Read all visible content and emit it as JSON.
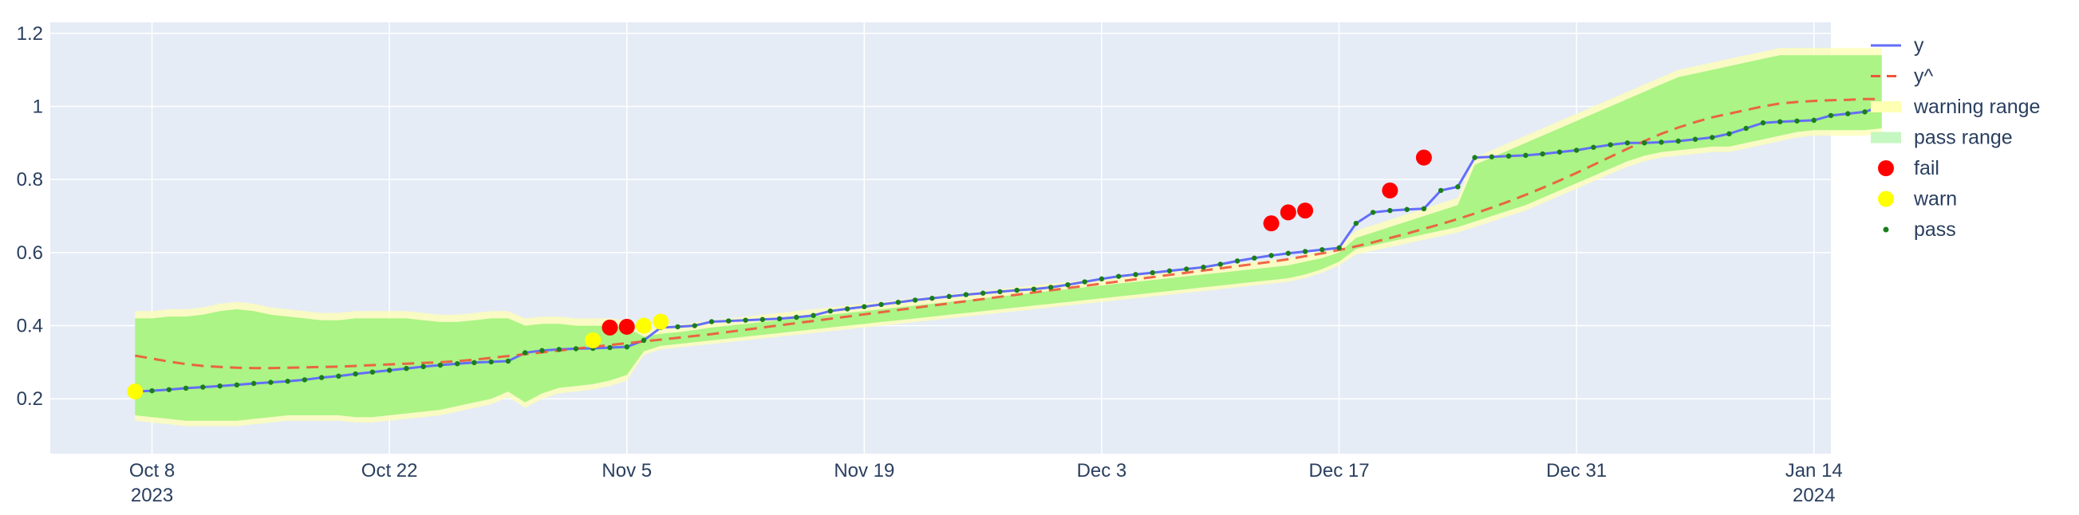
{
  "chart_data": {
    "type": "line",
    "x_type": "date",
    "xlim": [
      "2023-10-02",
      "2024-01-15"
    ],
    "ylim": [
      0.05,
      1.23
    ],
    "x_ticks": [
      {
        "date": "2023-10-08",
        "label": "Oct 8",
        "sublabel": "2023"
      },
      {
        "date": "2023-10-22",
        "label": "Oct 22",
        "sublabel": ""
      },
      {
        "date": "2023-11-05",
        "label": "Nov 5",
        "sublabel": ""
      },
      {
        "date": "2023-11-19",
        "label": "Nov 19",
        "sublabel": ""
      },
      {
        "date": "2023-12-03",
        "label": "Dec 3",
        "sublabel": ""
      },
      {
        "date": "2023-12-17",
        "label": "Dec 17",
        "sublabel": ""
      },
      {
        "date": "2023-12-31",
        "label": "Dec 31",
        "sublabel": ""
      },
      {
        "date": "2024-01-14",
        "label": "Jan 14",
        "sublabel": "2024"
      }
    ],
    "y_ticks": [
      {
        "value": 0.2,
        "label": "0.2"
      },
      {
        "value": 0.4,
        "label": "0.4"
      },
      {
        "value": 0.6,
        "label": "0.6"
      },
      {
        "value": 0.8,
        "label": "0.8"
      },
      {
        "value": 1.0,
        "label": "1"
      },
      {
        "value": 1.2,
        "label": "1.2"
      }
    ],
    "grid": true,
    "legend_position": "right",
    "legend": [
      {
        "key": "y",
        "label": "y",
        "symbol": "line",
        "color": "#636efa"
      },
      {
        "key": "yhat",
        "label": "y^",
        "symbol": "dash",
        "color": "#ef553b"
      },
      {
        "key": "warning",
        "label": "warning range",
        "symbol": "band",
        "color": "#ffffb3"
      },
      {
        "key": "pass_range",
        "label": "pass range",
        "symbol": "band",
        "color": "#c5f7c0"
      },
      {
        "key": "fail",
        "label": "fail",
        "symbol": "dot-large",
        "color": "#ff0000"
      },
      {
        "key": "warn",
        "label": "warn",
        "symbol": "dot-large",
        "color": "#ffff00"
      },
      {
        "key": "pass",
        "label": "pass",
        "symbol": "dot-small",
        "color": "#1a7f1a"
      }
    ],
    "colors": {
      "plot_bg": "#e5ecf6",
      "grid": "#ffffff",
      "y_line": "#636efa",
      "yhat_line": "#ef553b",
      "warning_band": "#ffffb3",
      "pass_band": "#9ef27a",
      "fail": "#ff0000",
      "warn": "#ffff00",
      "pass": "#1a7f1a"
    },
    "start_date": "2023-10-07",
    "y": [
      0.22,
      0.222,
      0.225,
      0.229,
      0.232,
      0.235,
      0.238,
      0.242,
      0.245,
      0.248,
      0.252,
      0.258,
      0.262,
      0.268,
      0.273,
      0.278,
      0.283,
      0.288,
      0.292,
      0.296,
      0.299,
      0.301,
      0.303,
      0.326,
      0.332,
      0.335,
      0.337,
      0.338,
      0.34,
      0.342,
      0.36,
      0.395,
      0.397,
      0.4,
      0.411,
      0.413,
      0.415,
      0.417,
      0.419,
      0.423,
      0.428,
      0.44,
      0.446,
      0.452,
      0.458,
      0.464,
      0.47,
      0.475,
      0.48,
      0.485,
      0.489,
      0.493,
      0.497,
      0.5,
      0.505,
      0.512,
      0.52,
      0.528,
      0.535,
      0.54,
      0.545,
      0.55,
      0.555,
      0.56,
      0.568,
      0.577,
      0.585,
      0.592,
      0.598,
      0.603,
      0.608,
      0.613,
      0.68,
      0.71,
      0.715,
      0.718,
      0.72,
      0.77,
      0.78,
      0.86,
      0.862,
      0.864,
      0.866,
      0.87,
      0.875,
      0.88,
      0.888,
      0.895,
      0.9,
      0.9,
      0.902,
      0.905,
      0.91,
      0.915,
      0.925,
      0.94,
      0.955,
      0.958,
      0.96,
      0.962,
      0.975,
      0.98,
      0.985,
      1.0
    ],
    "yhat": [
      0.318,
      0.31,
      0.302,
      0.295,
      0.29,
      0.287,
      0.285,
      0.284,
      0.284,
      0.285,
      0.286,
      0.287,
      0.288,
      0.29,
      0.292,
      0.294,
      0.296,
      0.298,
      0.3,
      0.303,
      0.307,
      0.312,
      0.317,
      0.322,
      0.327,
      0.332,
      0.337,
      0.342,
      0.347,
      0.352,
      0.357,
      0.362,
      0.367,
      0.372,
      0.377,
      0.383,
      0.389,
      0.395,
      0.401,
      0.407,
      0.413,
      0.419,
      0.425,
      0.431,
      0.437,
      0.443,
      0.449,
      0.455,
      0.461,
      0.467,
      0.473,
      0.479,
      0.485,
      0.491,
      0.497,
      0.503,
      0.509,
      0.515,
      0.521,
      0.527,
      0.533,
      0.539,
      0.545,
      0.551,
      0.557,
      0.563,
      0.569,
      0.575,
      0.582,
      0.59,
      0.598,
      0.607,
      0.617,
      0.628,
      0.64,
      0.652,
      0.665,
      0.678,
      0.692,
      0.707,
      0.723,
      0.74,
      0.758,
      0.777,
      0.797,
      0.818,
      0.84,
      0.862,
      0.884,
      0.905,
      0.925,
      0.942,
      0.957,
      0.97,
      0.98,
      0.99,
      1.0,
      1.008,
      1.012,
      1.015,
      1.017,
      1.018,
      1.02,
      1.02
    ],
    "pass_band": [
      [
        0.155,
        0.42
      ],
      [
        0.15,
        0.42
      ],
      [
        0.145,
        0.425
      ],
      [
        0.14,
        0.425
      ],
      [
        0.14,
        0.43
      ],
      [
        0.14,
        0.44
      ],
      [
        0.14,
        0.445
      ],
      [
        0.145,
        0.44
      ],
      [
        0.15,
        0.43
      ],
      [
        0.155,
        0.425
      ],
      [
        0.155,
        0.42
      ],
      [
        0.155,
        0.415
      ],
      [
        0.155,
        0.415
      ],
      [
        0.15,
        0.42
      ],
      [
        0.15,
        0.42
      ],
      [
        0.155,
        0.42
      ],
      [
        0.16,
        0.42
      ],
      [
        0.165,
        0.415
      ],
      [
        0.17,
        0.41
      ],
      [
        0.18,
        0.41
      ],
      [
        0.19,
        0.415
      ],
      [
        0.2,
        0.42
      ],
      [
        0.22,
        0.42
      ],
      [
        0.19,
        0.4
      ],
      [
        0.215,
        0.405
      ],
      [
        0.23,
        0.405
      ],
      [
        0.235,
        0.4
      ],
      [
        0.24,
        0.4
      ],
      [
        0.25,
        0.4
      ],
      [
        0.265,
        0.395
      ],
      [
        0.33,
        0.37
      ],
      [
        0.345,
        0.378
      ],
      [
        0.35,
        0.382
      ],
      [
        0.355,
        0.388
      ],
      [
        0.36,
        0.395
      ],
      [
        0.365,
        0.4
      ],
      [
        0.37,
        0.405
      ],
      [
        0.375,
        0.41
      ],
      [
        0.38,
        0.415
      ],
      [
        0.385,
        0.42
      ],
      [
        0.39,
        0.425
      ],
      [
        0.395,
        0.43
      ],
      [
        0.4,
        0.435
      ],
      [
        0.405,
        0.44
      ],
      [
        0.41,
        0.445
      ],
      [
        0.415,
        0.45
      ],
      [
        0.42,
        0.455
      ],
      [
        0.425,
        0.46
      ],
      [
        0.43,
        0.465
      ],
      [
        0.435,
        0.47
      ],
      [
        0.44,
        0.475
      ],
      [
        0.445,
        0.48
      ],
      [
        0.45,
        0.485
      ],
      [
        0.455,
        0.49
      ],
      [
        0.46,
        0.495
      ],
      [
        0.465,
        0.5
      ],
      [
        0.47,
        0.505
      ],
      [
        0.475,
        0.51
      ],
      [
        0.48,
        0.515
      ],
      [
        0.485,
        0.52
      ],
      [
        0.49,
        0.525
      ],
      [
        0.495,
        0.53
      ],
      [
        0.5,
        0.535
      ],
      [
        0.505,
        0.54
      ],
      [
        0.51,
        0.545
      ],
      [
        0.515,
        0.55
      ],
      [
        0.52,
        0.555
      ],
      [
        0.525,
        0.56
      ],
      [
        0.53,
        0.565
      ],
      [
        0.54,
        0.575
      ],
      [
        0.555,
        0.585
      ],
      [
        0.575,
        0.6
      ],
      [
        0.61,
        0.64
      ],
      [
        0.62,
        0.655
      ],
      [
        0.63,
        0.67
      ],
      [
        0.64,
        0.685
      ],
      [
        0.65,
        0.7
      ],
      [
        0.66,
        0.715
      ],
      [
        0.67,
        0.73
      ],
      [
        0.685,
        0.84
      ],
      [
        0.7,
        0.86
      ],
      [
        0.715,
        0.88
      ],
      [
        0.73,
        0.9
      ],
      [
        0.75,
        0.92
      ],
      [
        0.77,
        0.94
      ],
      [
        0.79,
        0.96
      ],
      [
        0.81,
        0.98
      ],
      [
        0.83,
        1.0
      ],
      [
        0.85,
        1.02
      ],
      [
        0.865,
        1.04
      ],
      [
        0.875,
        1.06
      ],
      [
        0.88,
        1.08
      ],
      [
        0.885,
        1.09
      ],
      [
        0.89,
        1.1
      ],
      [
        0.89,
        1.11
      ],
      [
        0.9,
        1.12
      ],
      [
        0.91,
        1.13
      ],
      [
        0.92,
        1.14
      ],
      [
        0.93,
        1.14
      ],
      [
        0.935,
        1.14
      ],
      [
        0.935,
        1.14
      ],
      [
        0.935,
        1.14
      ],
      [
        0.935,
        1.14
      ],
      [
        0.94,
        1.14
      ]
    ],
    "warning_band": [
      [
        0.14,
        0.44
      ],
      [
        0.135,
        0.44
      ],
      [
        0.13,
        0.445
      ],
      [
        0.125,
        0.445
      ],
      [
        0.125,
        0.45
      ],
      [
        0.125,
        0.46
      ],
      [
        0.125,
        0.465
      ],
      [
        0.13,
        0.46
      ],
      [
        0.135,
        0.45
      ],
      [
        0.14,
        0.445
      ],
      [
        0.14,
        0.44
      ],
      [
        0.14,
        0.435
      ],
      [
        0.14,
        0.435
      ],
      [
        0.135,
        0.44
      ],
      [
        0.135,
        0.44
      ],
      [
        0.14,
        0.44
      ],
      [
        0.145,
        0.44
      ],
      [
        0.15,
        0.435
      ],
      [
        0.155,
        0.43
      ],
      [
        0.165,
        0.43
      ],
      [
        0.175,
        0.435
      ],
      [
        0.185,
        0.44
      ],
      [
        0.205,
        0.44
      ],
      [
        0.175,
        0.42
      ],
      [
        0.2,
        0.425
      ],
      [
        0.215,
        0.425
      ],
      [
        0.22,
        0.42
      ],
      [
        0.225,
        0.42
      ],
      [
        0.235,
        0.42
      ],
      [
        0.25,
        0.415
      ],
      [
        0.32,
        0.39
      ],
      [
        0.335,
        0.398
      ],
      [
        0.34,
        0.402
      ],
      [
        0.345,
        0.408
      ],
      [
        0.35,
        0.415
      ],
      [
        0.355,
        0.42
      ],
      [
        0.36,
        0.425
      ],
      [
        0.365,
        0.43
      ],
      [
        0.37,
        0.435
      ],
      [
        0.375,
        0.44
      ],
      [
        0.38,
        0.445
      ],
      [
        0.385,
        0.45
      ],
      [
        0.39,
        0.455
      ],
      [
        0.395,
        0.46
      ],
      [
        0.4,
        0.465
      ],
      [
        0.405,
        0.47
      ],
      [
        0.41,
        0.475
      ],
      [
        0.415,
        0.48
      ],
      [
        0.42,
        0.485
      ],
      [
        0.425,
        0.49
      ],
      [
        0.43,
        0.495
      ],
      [
        0.435,
        0.5
      ],
      [
        0.44,
        0.505
      ],
      [
        0.445,
        0.51
      ],
      [
        0.45,
        0.515
      ],
      [
        0.455,
        0.52
      ],
      [
        0.46,
        0.525
      ],
      [
        0.465,
        0.53
      ],
      [
        0.47,
        0.535
      ],
      [
        0.475,
        0.54
      ],
      [
        0.48,
        0.545
      ],
      [
        0.485,
        0.55
      ],
      [
        0.49,
        0.555
      ],
      [
        0.495,
        0.56
      ],
      [
        0.5,
        0.565
      ],
      [
        0.505,
        0.57
      ],
      [
        0.51,
        0.575
      ],
      [
        0.515,
        0.58
      ],
      [
        0.52,
        0.585
      ],
      [
        0.53,
        0.595
      ],
      [
        0.545,
        0.605
      ],
      [
        0.565,
        0.62
      ],
      [
        0.595,
        0.66
      ],
      [
        0.605,
        0.675
      ],
      [
        0.615,
        0.69
      ],
      [
        0.625,
        0.705
      ],
      [
        0.635,
        0.72
      ],
      [
        0.645,
        0.735
      ],
      [
        0.655,
        0.75
      ],
      [
        0.67,
        0.86
      ],
      [
        0.685,
        0.88
      ],
      [
        0.7,
        0.9
      ],
      [
        0.715,
        0.92
      ],
      [
        0.735,
        0.94
      ],
      [
        0.755,
        0.96
      ],
      [
        0.775,
        0.98
      ],
      [
        0.795,
        1.0
      ],
      [
        0.815,
        1.02
      ],
      [
        0.835,
        1.04
      ],
      [
        0.85,
        1.06
      ],
      [
        0.86,
        1.08
      ],
      [
        0.865,
        1.1
      ],
      [
        0.87,
        1.11
      ],
      [
        0.875,
        1.12
      ],
      [
        0.875,
        1.13
      ],
      [
        0.885,
        1.14
      ],
      [
        0.895,
        1.15
      ],
      [
        0.905,
        1.16
      ],
      [
        0.915,
        1.16
      ],
      [
        0.92,
        1.16
      ],
      [
        0.92,
        1.16
      ],
      [
        0.92,
        1.16
      ],
      [
        0.92,
        1.16
      ],
      [
        0.925,
        1.16
      ]
    ],
    "fail_points": [
      {
        "date": "2023-11-04",
        "y": 0.395
      },
      {
        "date": "2023-11-05",
        "y": 0.397
      },
      {
        "date": "2023-12-13",
        "y": 0.68
      },
      {
        "date": "2023-12-14",
        "y": 0.71
      },
      {
        "date": "2023-12-15",
        "y": 0.715
      },
      {
        "date": "2023-12-20",
        "y": 0.77
      },
      {
        "date": "2023-12-22",
        "y": 0.86
      }
    ],
    "warn_points": [
      {
        "date": "2023-10-07",
        "y": 0.22
      },
      {
        "date": "2023-11-03",
        "y": 0.36
      },
      {
        "date": "2023-11-06",
        "y": 0.4
      },
      {
        "date": "2023-11-07",
        "y": 0.411
      }
    ]
  }
}
